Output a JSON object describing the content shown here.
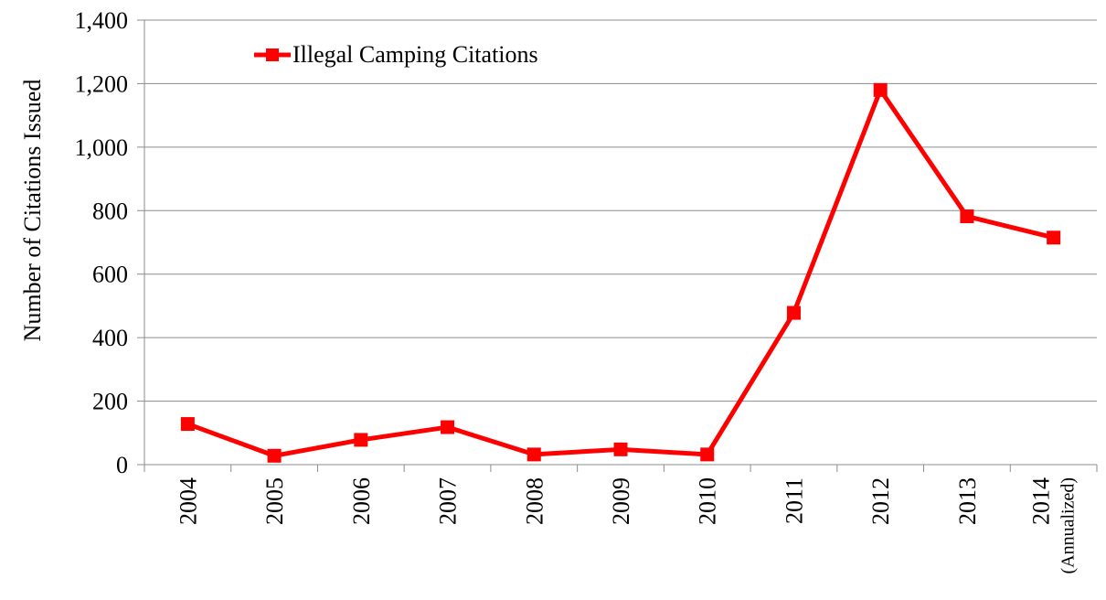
{
  "chart_data": {
    "type": "line",
    "title": "",
    "xlabel": "",
    "ylabel": "Number of Citations Issued",
    "ylim": [
      0,
      1400
    ],
    "yticks": [
      0,
      200,
      400,
      600,
      800,
      1000,
      1200,
      1400
    ],
    "ytick_labels": [
      "0",
      "200",
      "400",
      "600",
      "800",
      "1,000",
      "1,200",
      "1,400"
    ],
    "grid": "horizontal",
    "legend_position": "top-left",
    "categories": [
      "2004",
      "2005",
      "2006",
      "2007",
      "2008",
      "2009",
      "2010",
      "2011",
      "2012",
      "2013",
      "2014"
    ],
    "category_sublabels": [
      "",
      "",
      "",
      "",
      "",
      "",
      "",
      "",
      "",
      "",
      "(Annualized)"
    ],
    "series": [
      {
        "name": "Illegal Camping Citations",
        "color": "#ff0000",
        "marker": "square",
        "values": [
          128,
          28,
          78,
          118,
          32,
          48,
          32,
          478,
          1180,
          782,
          715
        ]
      }
    ]
  }
}
